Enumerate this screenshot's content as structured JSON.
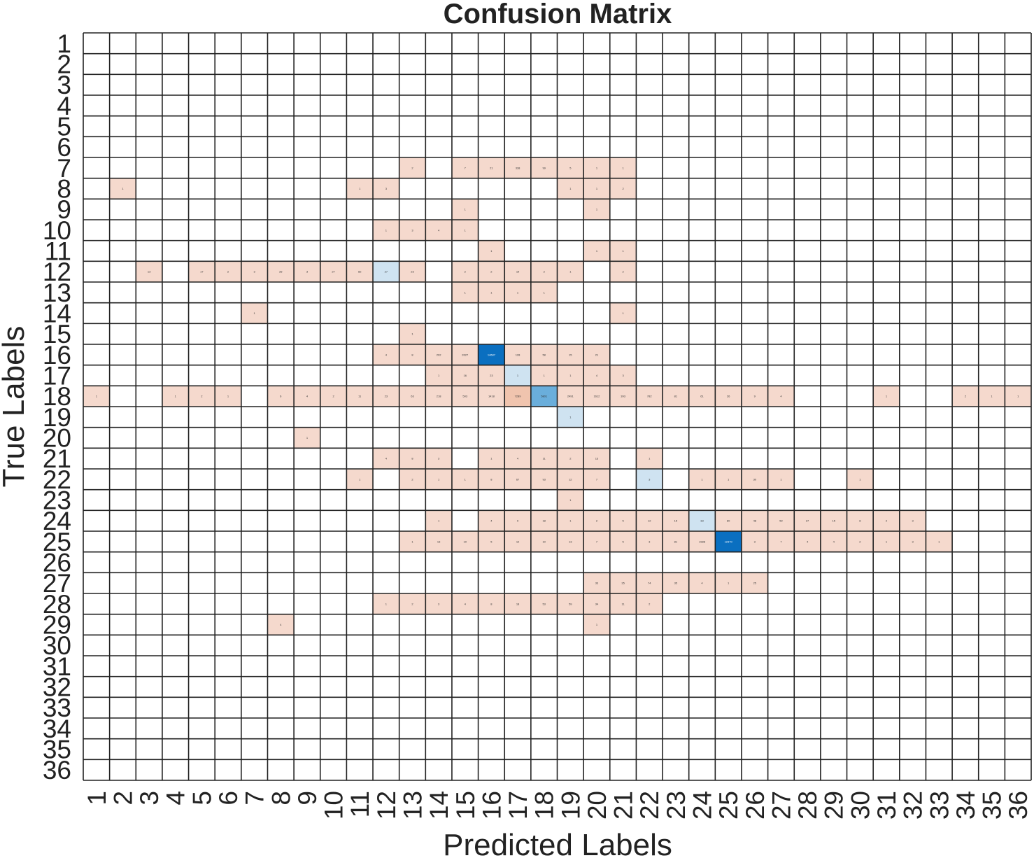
{
  "chart_data": {
    "type": "heatmap",
    "title": "Confusion Matrix",
    "xlabel": "Predicted Labels",
    "ylabel": "True Labels",
    "x_categories": [
      "1",
      "2",
      "3",
      "4",
      "5",
      "6",
      "7",
      "8",
      "9",
      "10",
      "11",
      "12",
      "13",
      "14",
      "15",
      "16",
      "17",
      "18",
      "19",
      "20",
      "21",
      "22",
      "23",
      "24",
      "25",
      "26",
      "27",
      "28",
      "29",
      "30",
      "31",
      "32",
      "33",
      "34",
      "35",
      "36"
    ],
    "y_categories": [
      "1",
      "2",
      "3",
      "4",
      "5",
      "6",
      "7",
      "8",
      "9",
      "10",
      "11",
      "12",
      "13",
      "14",
      "15",
      "16",
      "17",
      "18",
      "19",
      "20",
      "21",
      "22",
      "23",
      "24",
      "25",
      "26",
      "27",
      "28",
      "29",
      "30",
      "31",
      "32",
      "33",
      "34",
      "35",
      "36"
    ],
    "colormap": {
      "diagonal": "#0a6fc0",
      "diagonal_light": "#cfe3f1",
      "off_diagonal": "#f5d9cd",
      "off_diagonal_strong": "#f0c4ae",
      "empty": "#ffffff",
      "grid": "#222222"
    },
    "cells": [
      {
        "row": "7",
        "col": "13",
        "value": 2
      },
      {
        "row": "7",
        "col": "15",
        "value": 7
      },
      {
        "row": "7",
        "col": "16",
        "value": 21
      },
      {
        "row": "7",
        "col": "17",
        "value": 338
      },
      {
        "row": "7",
        "col": "18",
        "value": 99
      },
      {
        "row": "7",
        "col": "19",
        "value": 5
      },
      {
        "row": "7",
        "col": "20",
        "value": 1
      },
      {
        "row": "7",
        "col": "21",
        "value": 1
      },
      {
        "row": "8",
        "col": "2",
        "value": 1
      },
      {
        "row": "8",
        "col": "11",
        "value": 1
      },
      {
        "row": "8",
        "col": "12",
        "value": 3
      },
      {
        "row": "8",
        "col": "19",
        "value": 1
      },
      {
        "row": "8",
        "col": "20",
        "value": 1
      },
      {
        "row": "8",
        "col": "21",
        "value": 2
      },
      {
        "row": "9",
        "col": "15",
        "value": 1
      },
      {
        "row": "9",
        "col": "20",
        "value": 1
      },
      {
        "row": "10",
        "col": "12",
        "value": 1
      },
      {
        "row": "10",
        "col": "13",
        "value": 3
      },
      {
        "row": "10",
        "col": "14",
        "value": 4
      },
      {
        "row": "10",
        "col": "15",
        "value": 1
      },
      {
        "row": "11",
        "col": "16",
        "value": 1
      },
      {
        "row": "11",
        "col": "20",
        "value": 1
      },
      {
        "row": "11",
        "col": "21",
        "value": 1
      },
      {
        "row": "12",
        "col": "3",
        "value": 13
      },
      {
        "row": "12",
        "col": "5",
        "value": 17
      },
      {
        "row": "12",
        "col": "6",
        "value": 2
      },
      {
        "row": "12",
        "col": "7",
        "value": 3
      },
      {
        "row": "12",
        "col": "8",
        "value": 25
      },
      {
        "row": "12",
        "col": "9",
        "value": 3
      },
      {
        "row": "12",
        "col": "10",
        "value": 27
      },
      {
        "row": "12",
        "col": "11",
        "value": 82
      },
      {
        "row": "12",
        "col": "12",
        "value": 27
      },
      {
        "row": "12",
        "col": "13",
        "value": 23
      },
      {
        "row": "12",
        "col": "15",
        "value": 2
      },
      {
        "row": "12",
        "col": "16",
        "value": 2
      },
      {
        "row": "12",
        "col": "17",
        "value": 19
      },
      {
        "row": "12",
        "col": "18",
        "value": 2
      },
      {
        "row": "12",
        "col": "19",
        "value": 1
      },
      {
        "row": "12",
        "col": "21",
        "value": 2
      },
      {
        "row": "13",
        "col": "15",
        "value": 1
      },
      {
        "row": "13",
        "col": "16",
        "value": 1
      },
      {
        "row": "13",
        "col": "17",
        "value": 1
      },
      {
        "row": "13",
        "col": "18",
        "value": 1
      },
      {
        "row": "14",
        "col": "7",
        "value": 1
      },
      {
        "row": "14",
        "col": "21",
        "value": 1
      },
      {
        "row": "15",
        "col": "13",
        "value": 1
      },
      {
        "row": "16",
        "col": "12",
        "value": 4
      },
      {
        "row": "16",
        "col": "13",
        "value": 8
      },
      {
        "row": "16",
        "col": "14",
        "value": 202
      },
      {
        "row": "16",
        "col": "15",
        "value": 2627
      },
      {
        "row": "16",
        "col": "16",
        "value": 14687
      },
      {
        "row": "16",
        "col": "17",
        "value": 128
      },
      {
        "row": "16",
        "col": "18",
        "value": 58
      },
      {
        "row": "16",
        "col": "19",
        "value": 15
      },
      {
        "row": "16",
        "col": "20",
        "value": 21
      },
      {
        "row": "17",
        "col": "14",
        "value": 1
      },
      {
        "row": "17",
        "col": "15",
        "value": 16
      },
      {
        "row": "17",
        "col": "16",
        "value": 23
      },
      {
        "row": "17",
        "col": "17",
        "value": 1
      },
      {
        "row": "17",
        "col": "18",
        "value": 1
      },
      {
        "row": "17",
        "col": "19",
        "value": 1
      },
      {
        "row": "17",
        "col": "20",
        "value": 4
      },
      {
        "row": "17",
        "col": "21",
        "value": 3
      },
      {
        "row": "18",
        "col": "1",
        "value": 1
      },
      {
        "row": "18",
        "col": "4",
        "value": 1
      },
      {
        "row": "18",
        "col": "5",
        "value": 2
      },
      {
        "row": "18",
        "col": "6",
        "value": 1
      },
      {
        "row": "18",
        "col": "8",
        "value": 6
      },
      {
        "row": "18",
        "col": "9",
        "value": 4
      },
      {
        "row": "18",
        "col": "10",
        "value": 2
      },
      {
        "row": "18",
        "col": "11",
        "value": 11
      },
      {
        "row": "18",
        "col": "12",
        "value": 23
      },
      {
        "row": "18",
        "col": "13",
        "value": 63
      },
      {
        "row": "18",
        "col": "14",
        "value": 218
      },
      {
        "row": "18",
        "col": "15",
        "value": 503
      },
      {
        "row": "18",
        "col": "16",
        "value": 1418
      },
      {
        "row": "18",
        "col": "17",
        "value": 7289
      },
      {
        "row": "18",
        "col": "18",
        "value": 5801
      },
      {
        "row": "18",
        "col": "19",
        "value": 2491
      },
      {
        "row": "18",
        "col": "20",
        "value": 1612
      },
      {
        "row": "18",
        "col": "21",
        "value": 393
      },
      {
        "row": "18",
        "col": "22",
        "value": 782
      },
      {
        "row": "18",
        "col": "23",
        "value": 81
      },
      {
        "row": "18",
        "col": "24",
        "value": 61
      },
      {
        "row": "18",
        "col": "25",
        "value": 26
      },
      {
        "row": "18",
        "col": "26",
        "value": 9
      },
      {
        "row": "18",
        "col": "27",
        "value": 4
      },
      {
        "row": "18",
        "col": "31",
        "value": 1
      },
      {
        "row": "18",
        "col": "34",
        "value": 2
      },
      {
        "row": "18",
        "col": "35",
        "value": 1
      },
      {
        "row": "18",
        "col": "36",
        "value": 1
      },
      {
        "row": "19",
        "col": "19",
        "value": 1
      },
      {
        "row": "20",
        "col": "9",
        "value": 1
      },
      {
        "row": "21",
        "col": "12",
        "value": 4
      },
      {
        "row": "21",
        "col": "13",
        "value": 8
      },
      {
        "row": "21",
        "col": "14",
        "value": 3
      },
      {
        "row": "21",
        "col": "16",
        "value": 1
      },
      {
        "row": "21",
        "col": "17",
        "value": 4
      },
      {
        "row": "21",
        "col": "18",
        "value": 11
      },
      {
        "row": "21",
        "col": "19",
        "value": 2
      },
      {
        "row": "21",
        "col": "20",
        "value": 13
      },
      {
        "row": "21",
        "col": "22",
        "value": 1
      },
      {
        "row": "22",
        "col": "11",
        "value": 1
      },
      {
        "row": "22",
        "col": "13",
        "value": 2
      },
      {
        "row": "22",
        "col": "14",
        "value": 1
      },
      {
        "row": "22",
        "col": "15",
        "value": 1
      },
      {
        "row": "22",
        "col": "16",
        "value": 8
      },
      {
        "row": "22",
        "col": "17",
        "value": 67
      },
      {
        "row": "22",
        "col": "18",
        "value": 93
      },
      {
        "row": "22",
        "col": "19",
        "value": 12
      },
      {
        "row": "22",
        "col": "20",
        "value": 7
      },
      {
        "row": "22",
        "col": "22",
        "value": 3
      },
      {
        "row": "22",
        "col": "24",
        "value": 1
      },
      {
        "row": "22",
        "col": "25",
        "value": 1
      },
      {
        "row": "22",
        "col": "26",
        "value": 30
      },
      {
        "row": "22",
        "col": "27",
        "value": 1
      },
      {
        "row": "22",
        "col": "30",
        "value": 1
      },
      {
        "row": "23",
        "col": "19",
        "value": 1
      },
      {
        "row": "24",
        "col": "14",
        "value": 1
      },
      {
        "row": "24",
        "col": "16",
        "value": 4
      },
      {
        "row": "24",
        "col": "17",
        "value": 9
      },
      {
        "row": "24",
        "col": "18",
        "value": 18
      },
      {
        "row": "24",
        "col": "19",
        "value": 1
      },
      {
        "row": "24",
        "col": "20",
        "value": 2
      },
      {
        "row": "24",
        "col": "21",
        "value": 5
      },
      {
        "row": "24",
        "col": "22",
        "value": 12
      },
      {
        "row": "24",
        "col": "23",
        "value": 15
      },
      {
        "row": "24",
        "col": "24",
        "value": 33
      },
      {
        "row": "24",
        "col": "25",
        "value": 80
      },
      {
        "row": "24",
        "col": "26",
        "value": 48
      },
      {
        "row": "24",
        "col": "27",
        "value": 59
      },
      {
        "row": "24",
        "col": "28",
        "value": 27
      },
      {
        "row": "24",
        "col": "29",
        "value": 15
      },
      {
        "row": "24",
        "col": "30",
        "value": 8
      },
      {
        "row": "24",
        "col": "31",
        "value": 2
      },
      {
        "row": "24",
        "col": "32",
        "value": 3
      },
      {
        "row": "25",
        "col": "13",
        "value": 1
      },
      {
        "row": "25",
        "col": "14",
        "value": 13
      },
      {
        "row": "25",
        "col": "15",
        "value": 10
      },
      {
        "row": "25",
        "col": "16",
        "value": 5
      },
      {
        "row": "25",
        "col": "17",
        "value": 12
      },
      {
        "row": "25",
        "col": "18",
        "value": 10
      },
      {
        "row": "25",
        "col": "19",
        "value": 13
      },
      {
        "row": "25",
        "col": "20",
        "value": 7
      },
      {
        "row": "25",
        "col": "21",
        "value": 5
      },
      {
        "row": "25",
        "col": "22",
        "value": 3
      },
      {
        "row": "25",
        "col": "23",
        "value": 81
      },
      {
        "row": "25",
        "col": "24",
        "value": 1988
      },
      {
        "row": "25",
        "col": "25",
        "value": 12370
      },
      {
        "row": "25",
        "col": "26",
        "value": 3
      },
      {
        "row": "25",
        "col": "27",
        "value": 7
      },
      {
        "row": "25",
        "col": "28",
        "value": 4
      },
      {
        "row": "25",
        "col": "29",
        "value": 4
      },
      {
        "row": "25",
        "col": "30",
        "value": 2
      },
      {
        "row": "25",
        "col": "31",
        "value": 1
      },
      {
        "row": "25",
        "col": "32",
        "value": 3
      },
      {
        "row": "25",
        "col": "33",
        "value": 1
      },
      {
        "row": "27",
        "col": "20",
        "value": 33
      },
      {
        "row": "27",
        "col": "21",
        "value": 35
      },
      {
        "row": "27",
        "col": "22",
        "value": 74
      },
      {
        "row": "27",
        "col": "23",
        "value": 35
      },
      {
        "row": "27",
        "col": "24",
        "value": 4
      },
      {
        "row": "27",
        "col": "25",
        "value": 1
      },
      {
        "row": "27",
        "col": "26",
        "value": 25
      },
      {
        "row": "28",
        "col": "12",
        "value": 1
      },
      {
        "row": "28",
        "col": "13",
        "value": 2
      },
      {
        "row": "28",
        "col": "14",
        "value": 3
      },
      {
        "row": "28",
        "col": "15",
        "value": 4
      },
      {
        "row": "28",
        "col": "16",
        "value": 8
      },
      {
        "row": "28",
        "col": "17",
        "value": 18
      },
      {
        "row": "28",
        "col": "18",
        "value": 53
      },
      {
        "row": "28",
        "col": "19",
        "value": 59
      },
      {
        "row": "28",
        "col": "20",
        "value": 34
      },
      {
        "row": "28",
        "col": "21",
        "value": 11
      },
      {
        "row": "28",
        "col": "22",
        "value": 2
      },
      {
        "row": "29",
        "col": "8",
        "value": 4
      },
      {
        "row": "29",
        "col": "20",
        "value": 1
      }
    ],
    "grid": true,
    "legend": "none"
  }
}
